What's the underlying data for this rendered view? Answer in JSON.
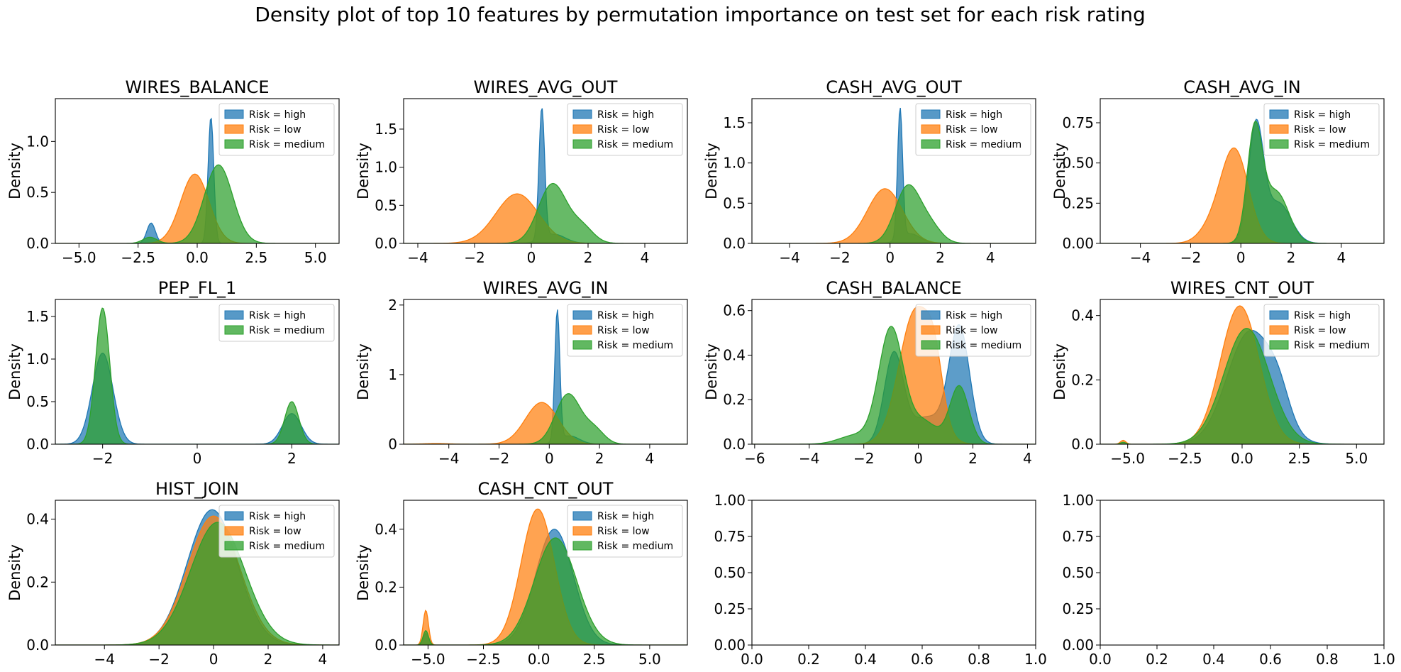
{
  "suptitle": "Density plot of top 10 features by permutation importance on test set for each risk rating",
  "series_colors": {
    "high": "#1f77b4",
    "low": "#ff7f0e",
    "medium": "#2ca02c"
  },
  "legend_labels": {
    "high": "Risk = high",
    "low": "Risk = low",
    "medium": "Risk = medium"
  },
  "chart_data": [
    {
      "type": "area",
      "title": "WIRES_BALANCE",
      "ylabel": "Density",
      "xlim": [
        -6.0,
        6.0
      ],
      "ylim": [
        0,
        1.42
      ],
      "xticks": [
        -5.0,
        -2.5,
        0.0,
        2.5,
        5.0
      ],
      "xtick_labels": [
        "−5.0",
        "−2.5",
        "0.0",
        "2.5",
        "5.0"
      ],
      "yticks": [
        0,
        0.5,
        1.0
      ],
      "ytick_labels": [
        "0.0",
        "0.5",
        "1.0"
      ],
      "legend": [
        "high",
        "low",
        "medium"
      ],
      "legend_position": "upper right",
      "series": [
        {
          "name": "high",
          "components": [
            [
              0.58,
              1.24,
              0.12
            ],
            [
              -1.95,
              0.2,
              0.18
            ]
          ]
        },
        {
          "name": "low",
          "components": [
            [
              -0.1,
              0.68,
              0.6
            ]
          ]
        },
        {
          "name": "medium",
          "components": [
            [
              0.9,
              0.77,
              0.6
            ],
            [
              -2.0,
              0.06,
              0.3
            ]
          ]
        }
      ]
    },
    {
      "type": "area",
      "title": "WIRES_AVG_OUT",
      "ylabel": "Density",
      "xlim": [
        -4.5,
        5.5
      ],
      "ylim": [
        0,
        1.9
      ],
      "xticks": [
        -4,
        -2,
        0,
        2,
        4
      ],
      "xtick_labels": [
        "−4",
        "−2",
        "0",
        "2",
        "4"
      ],
      "yticks": [
        0,
        0.5,
        1.0,
        1.5
      ],
      "ytick_labels": [
        "0.0",
        "0.5",
        "1.0",
        "1.5"
      ],
      "legend": [
        "high",
        "low",
        "medium"
      ],
      "legend_position": "upper right",
      "series": [
        {
          "name": "high",
          "components": [
            [
              0.37,
              1.72,
              0.1
            ],
            [
              0.8,
              0.12,
              0.4
            ]
          ]
        },
        {
          "name": "low",
          "components": [
            [
              -0.5,
              0.65,
              0.75
            ]
          ]
        },
        {
          "name": "medium",
          "components": [
            [
              0.75,
              0.78,
              0.5
            ],
            [
              1.8,
              0.2,
              0.4
            ]
          ]
        }
      ]
    },
    {
      "type": "area",
      "title": "CASH_AVG_OUT",
      "ylabel": "Density",
      "xlim": [
        -5.5,
        5.8
      ],
      "ylim": [
        0,
        1.8
      ],
      "xticks": [
        -4,
        -2,
        0,
        2,
        4
      ],
      "xtick_labels": [
        "−4",
        "−2",
        "0",
        "2",
        "4"
      ],
      "yticks": [
        0,
        0.5,
        1.0,
        1.5
      ],
      "ytick_labels": [
        "0.0",
        "0.5",
        "1.0",
        "1.5"
      ],
      "legend": [
        "high",
        "low",
        "medium"
      ],
      "legend_position": "upper right",
      "series": [
        {
          "name": "high",
          "components": [
            [
              0.4,
              1.62,
              0.1
            ],
            [
              0.8,
              0.12,
              0.4
            ]
          ]
        },
        {
          "name": "low",
          "components": [
            [
              -0.2,
              0.68,
              0.7
            ]
          ]
        },
        {
          "name": "medium",
          "components": [
            [
              0.7,
              0.7,
              0.5
            ],
            [
              1.6,
              0.2,
              0.45
            ]
          ]
        }
      ]
    },
    {
      "type": "area",
      "title": "CASH_AVG_IN",
      "ylabel": "Density",
      "xlim": [
        -5.6,
        5.7
      ],
      "ylim": [
        0,
        0.9
      ],
      "xticks": [
        -4,
        -2,
        0,
        2,
        4
      ],
      "xtick_labels": [
        "−4",
        "−2",
        "0",
        "2",
        "4"
      ],
      "yticks": [
        0,
        0.25,
        0.5,
        0.75
      ],
      "ytick_labels": [
        "0.00",
        "0.25",
        "0.50",
        "0.75"
      ],
      "legend": [
        "high",
        "low",
        "medium"
      ],
      "legend_position": "upper right",
      "series": [
        {
          "name": "high",
          "components": [
            [
              0.6,
              0.72,
              0.3
            ],
            [
              1.5,
              0.25,
              0.5
            ]
          ]
        },
        {
          "name": "low",
          "components": [
            [
              -0.25,
              0.58,
              0.55
            ],
            [
              -1.2,
              0.08,
              0.5
            ]
          ]
        },
        {
          "name": "medium",
          "components": [
            [
              0.55,
              0.68,
              0.3
            ],
            [
              1.4,
              0.32,
              0.5
            ]
          ]
        }
      ]
    },
    {
      "type": "area",
      "title": "PEP_FL_1",
      "ylabel": "Density",
      "xlim": [
        -3.0,
        3.0
      ],
      "ylim": [
        0,
        1.7
      ],
      "xticks": [
        -2,
        0,
        2
      ],
      "xtick_labels": [
        "−2",
        "0",
        "2"
      ],
      "yticks": [
        0,
        0.5,
        1.0,
        1.5
      ],
      "ytick_labels": [
        "0.0",
        "0.5",
        "1.0",
        "1.5"
      ],
      "legend": [
        "high",
        "medium"
      ],
      "legend_position": "upper right",
      "series": [
        {
          "name": "high",
          "components": [
            [
              -2.0,
              1.07,
              0.22
            ],
            [
              2.0,
              0.36,
              0.2
            ]
          ]
        },
        {
          "name": "medium",
          "components": [
            [
              -2.0,
              1.6,
              0.15
            ],
            [
              2.0,
              0.5,
              0.15
            ]
          ]
        }
      ]
    },
    {
      "type": "area",
      "title": "WIRES_AVG_IN",
      "ylabel": "Density",
      "xlim": [
        -5.8,
        5.5
      ],
      "ylim": [
        0,
        2.08
      ],
      "xticks": [
        -4,
        -2,
        0,
        2,
        4
      ],
      "xtick_labels": [
        "−4",
        "−2",
        "0",
        "2",
        "4"
      ],
      "yticks": [
        0,
        1,
        2
      ],
      "ytick_labels": [
        "0",
        "1",
        "2"
      ],
      "legend": [
        "high",
        "low",
        "medium"
      ],
      "legend_position": "upper right",
      "series": [
        {
          "name": "high",
          "components": [
            [
              0.32,
              1.88,
              0.1
            ],
            [
              0.8,
              0.12,
              0.4
            ]
          ]
        },
        {
          "name": "low",
          "components": [
            [
              -0.3,
              0.6,
              0.65
            ],
            [
              -4.5,
              0.01,
              0.5
            ]
          ]
        },
        {
          "name": "medium",
          "components": [
            [
              0.75,
              0.72,
              0.5
            ],
            [
              1.8,
              0.2,
              0.4
            ]
          ]
        }
      ]
    },
    {
      "type": "area",
      "title": "CASH_BALANCE",
      "ylabel": "Density",
      "xlim": [
        -6.1,
        4.3
      ],
      "ylim": [
        0,
        0.65
      ],
      "xticks": [
        -6,
        -4,
        -2,
        0,
        2,
        4
      ],
      "xtick_labels": [
        "−6",
        "−4",
        "−2",
        "0",
        "2",
        "4"
      ],
      "yticks": [
        0,
        0.2,
        0.4,
        0.6
      ],
      "ytick_labels": [
        "0.0",
        "0.2",
        "0.4",
        "0.6"
      ],
      "legend": [
        "high",
        "low",
        "medium"
      ],
      "legend_position": "upper right",
      "series": [
        {
          "name": "high",
          "components": [
            [
              -0.9,
              0.4,
              0.35
            ],
            [
              1.5,
              0.52,
              0.38
            ],
            [
              0.3,
              0.12,
              0.6
            ]
          ]
        },
        {
          "name": "low",
          "components": [
            [
              -0.1,
              0.6,
              0.6
            ],
            [
              0.6,
              0.2,
              0.3
            ]
          ]
        },
        {
          "name": "medium",
          "components": [
            [
              -1.0,
              0.52,
              0.45
            ],
            [
              1.5,
              0.26,
              0.35
            ],
            [
              0.2,
              0.1,
              0.5
            ],
            [
              -2.3,
              0.04,
              0.6
            ]
          ]
        }
      ]
    },
    {
      "type": "area",
      "title": "WIRES_CNT_OUT",
      "ylabel": "Density",
      "xlim": [
        -6.2,
        6.2
      ],
      "ylim": [
        0,
        0.45
      ],
      "xticks": [
        -5.0,
        -2.5,
        0.0,
        2.5,
        5.0
      ],
      "xtick_labels": [
        "−5.0",
        "−2.5",
        "0.0",
        "2.5",
        "5.0"
      ],
      "yticks": [
        0,
        0.2,
        0.4
      ],
      "ytick_labels": [
        "0.0",
        "0.2",
        "0.4"
      ],
      "legend": [
        "high",
        "low",
        "medium"
      ],
      "legend_position": "upper right",
      "series": [
        {
          "name": "high",
          "components": [
            [
              0.35,
              0.35,
              1.0
            ],
            [
              1.6,
              0.08,
              0.5
            ]
          ]
        },
        {
          "name": "low",
          "components": [
            [
              -0.1,
              0.43,
              0.85
            ],
            [
              -5.2,
              0.012,
              0.12
            ]
          ]
        },
        {
          "name": "medium",
          "components": [
            [
              0.2,
              0.36,
              1.0
            ],
            [
              -5.2,
              0.006,
              0.12
            ]
          ]
        }
      ]
    },
    {
      "type": "area",
      "title": "HIST_JOIN",
      "ylabel": "Density",
      "xlim": [
        -5.8,
        4.6
      ],
      "ylim": [
        0,
        0.46
      ],
      "xticks": [
        -4,
        -2,
        0,
        2,
        4
      ],
      "xtick_labels": [
        "−4",
        "−2",
        "0",
        "2",
        "4"
      ],
      "yticks": [
        0,
        0.2,
        0.4
      ],
      "ytick_labels": [
        "0.0",
        "0.2",
        "0.4"
      ],
      "legend": [
        "high",
        "low",
        "medium"
      ],
      "legend_position": "upper right",
      "series": [
        {
          "name": "high",
          "components": [
            [
              -0.05,
              0.43,
              0.92
            ]
          ]
        },
        {
          "name": "low",
          "components": [
            [
              0.0,
              0.41,
              0.95
            ]
          ]
        },
        {
          "name": "medium",
          "components": [
            [
              0.15,
              0.39,
              1.0
            ]
          ]
        }
      ]
    },
    {
      "type": "area",
      "title": "CASH_CNT_OUT",
      "ylabel": "Density",
      "xlim": [
        -6.1,
        6.7
      ],
      "ylim": [
        0,
        0.5
      ],
      "xticks": [
        -5.0,
        -2.5,
        0.0,
        2.5,
        5.0
      ],
      "xtick_labels": [
        "−5.0",
        "−2.5",
        "0.0",
        "2.5",
        "5.0"
      ],
      "yticks": [
        0,
        0.2,
        0.4
      ],
      "ytick_labels": [
        "0.0",
        "0.2",
        "0.4"
      ],
      "legend": [
        "high",
        "low",
        "medium"
      ],
      "legend_position": "upper right",
      "series": [
        {
          "name": "high",
          "components": [
            [
              0.7,
              0.4,
              0.85
            ],
            [
              -5.1,
              0.04,
              0.12
            ]
          ]
        },
        {
          "name": "low",
          "components": [
            [
              -0.05,
              0.47,
              0.75
            ],
            [
              -5.1,
              0.12,
              0.12
            ]
          ]
        },
        {
          "name": "medium",
          "components": [
            [
              0.75,
              0.37,
              0.95
            ],
            [
              -5.1,
              0.05,
              0.12
            ]
          ]
        }
      ]
    },
    {
      "type": "empty",
      "title": "",
      "ylabel": "",
      "xlim": [
        0,
        1
      ],
      "ylim": [
        0,
        1
      ],
      "xticks": [
        0,
        0.2,
        0.4,
        0.6,
        0.8,
        1.0
      ],
      "xtick_labels": [
        "0.0",
        "0.2",
        "0.4",
        "0.6",
        "0.8",
        "1.0"
      ],
      "yticks": [
        0,
        0.25,
        0.5,
        0.75,
        1.0
      ],
      "ytick_labels": [
        "0.00",
        "0.25",
        "0.50",
        "0.75",
        "1.00"
      ],
      "legend": [],
      "series": []
    },
    {
      "type": "empty",
      "title": "",
      "ylabel": "",
      "xlim": [
        0,
        1
      ],
      "ylim": [
        0,
        1
      ],
      "xticks": [
        0,
        0.2,
        0.4,
        0.6,
        0.8,
        1.0
      ],
      "xtick_labels": [
        "0.0",
        "0.2",
        "0.4",
        "0.6",
        "0.8",
        "1.0"
      ],
      "yticks": [
        0,
        0.25,
        0.5,
        0.75,
        1.0
      ],
      "ytick_labels": [
        "0.00",
        "0.25",
        "0.50",
        "0.75",
        "1.00"
      ],
      "legend": [],
      "series": []
    }
  ]
}
